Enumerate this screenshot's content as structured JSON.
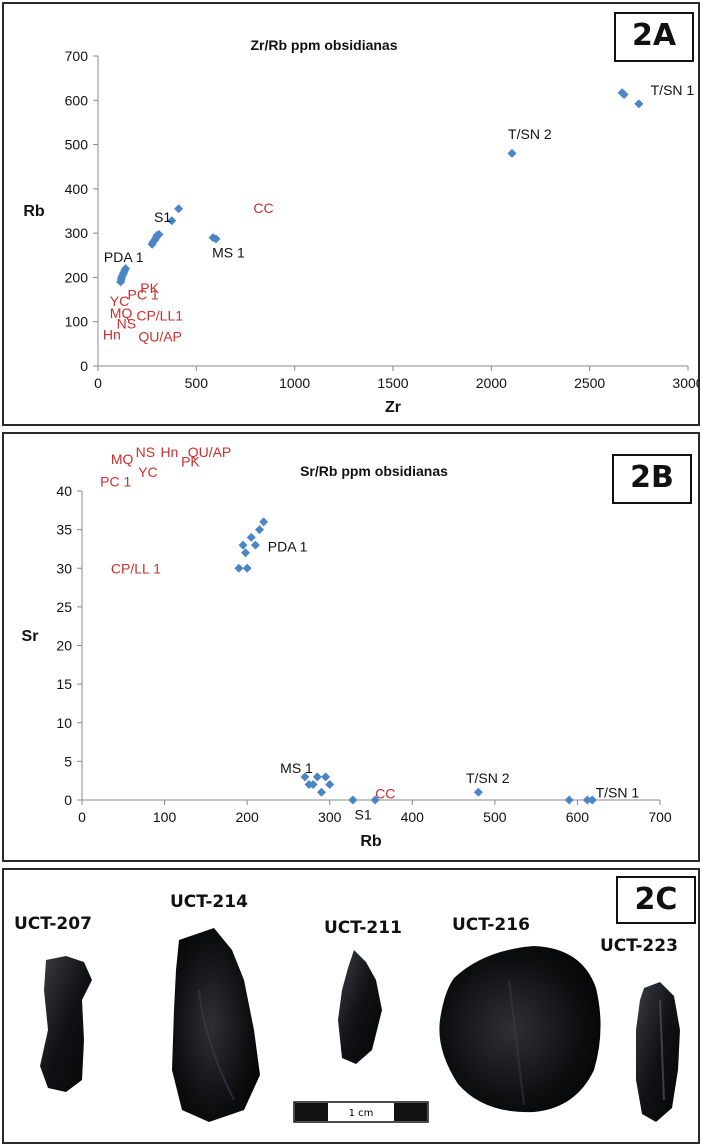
{
  "chart_data": [
    {
      "panel": "2A",
      "type": "scatter",
      "title": "Zr/Rb ppm obsidianas",
      "xlabel": "Zr",
      "ylabel": "Rb",
      "xlim": [
        0,
        3000
      ],
      "ylim": [
        0,
        700
      ],
      "xticks": [
        0,
        500,
        1000,
        1500,
        2000,
        2500,
        3000
      ],
      "yticks": [
        0,
        100,
        200,
        300,
        400,
        500,
        600,
        700
      ],
      "grid": false,
      "marker_color": "#4A86C5",
      "points": [
        [
          115,
          190
        ],
        [
          118,
          195
        ],
        [
          120,
          200
        ],
        [
          125,
          205
        ],
        [
          130,
          210
        ],
        [
          135,
          215
        ],
        [
          140,
          220
        ],
        [
          275,
          275
        ],
        [
          280,
          280
        ],
        [
          290,
          285
        ],
        [
          295,
          290
        ],
        [
          300,
          295
        ],
        [
          310,
          297
        ],
        [
          375,
          328
        ],
        [
          410,
          355
        ],
        [
          585,
          290
        ],
        [
          600,
          287
        ],
        [
          2105,
          480
        ],
        [
          2665,
          617
        ],
        [
          2675,
          613
        ],
        [
          2750,
          592
        ]
      ],
      "labels": [
        {
          "text": "T/SN 1",
          "x": 2810,
          "y": 612,
          "color": "#111111"
        },
        {
          "text": "T/SN 2",
          "x": 2085,
          "y": 513,
          "color": "#111111"
        },
        {
          "text": "S1",
          "x": 285,
          "y": 325,
          "color": "#111111"
        },
        {
          "text": "MS 1",
          "x": 580,
          "y": 245,
          "color": "#111111"
        },
        {
          "text": "PDA 1",
          "x": 30,
          "y": 235,
          "color": "#111111"
        },
        {
          "text": "CC",
          "x": 790,
          "y": 345,
          "color": "#C8312E"
        },
        {
          "text": "PK",
          "x": 215,
          "y": 165,
          "color": "#C8312E"
        },
        {
          "text": "YC",
          "x": 60,
          "y": 135,
          "color": "#C8312E"
        },
        {
          "text": "PC 1",
          "x": 150,
          "y": 150,
          "color": "#C8312E"
        },
        {
          "text": "MQ",
          "x": 60,
          "y": 108,
          "color": "#C8312E"
        },
        {
          "text": "CP/LL1",
          "x": 195,
          "y": 103,
          "color": "#C8312E"
        },
        {
          "text": "NS",
          "x": 95,
          "y": 85,
          "color": "#C8312E"
        },
        {
          "text": "Hn",
          "x": 25,
          "y": 60,
          "color": "#C8312E"
        },
        {
          "text": "QU/AP",
          "x": 205,
          "y": 55,
          "color": "#C8312E"
        }
      ]
    },
    {
      "panel": "2B",
      "type": "scatter",
      "title": "Sr/Rb ppm obsidianas",
      "xlabel": "Rb",
      "ylabel": "Sr",
      "xlim": [
        0,
        700
      ],
      "ylim": [
        0,
        40
      ],
      "xticks": [
        0,
        100,
        200,
        300,
        400,
        500,
        600,
        700
      ],
      "yticks": [
        0,
        5,
        10,
        15,
        20,
        25,
        30,
        35,
        40
      ],
      "grid": false,
      "marker_color": "#4A86C5",
      "points": [
        [
          190,
          30
        ],
        [
          200,
          30
        ],
        [
          195,
          33
        ],
        [
          198,
          32
        ],
        [
          205,
          34
        ],
        [
          210,
          33
        ],
        [
          215,
          35
        ],
        [
          220,
          36
        ],
        [
          270,
          3
        ],
        [
          275,
          2
        ],
        [
          280,
          2
        ],
        [
          285,
          3
        ],
        [
          290,
          1
        ],
        [
          295,
          3
        ],
        [
          300,
          2
        ],
        [
          328,
          0
        ],
        [
          355,
          0
        ],
        [
          480,
          1
        ],
        [
          590,
          0
        ],
        [
          612,
          0
        ],
        [
          618,
          0
        ]
      ],
      "labels": [
        {
          "text": "PDA 1",
          "x": 225,
          "y": 32.2,
          "color": "#111111"
        },
        {
          "text": "MS 1",
          "x": 240,
          "y": 3.5,
          "color": "#111111"
        },
        {
          "text": "S1",
          "x": 330,
          "y": -2.5,
          "color": "#111111"
        },
        {
          "text": "T/SN 2",
          "x": 465,
          "y": 2.2,
          "color": "#111111"
        },
        {
          "text": "T/SN 1",
          "x": 622,
          "y": 0.3,
          "color": "#111111"
        },
        {
          "text": "CC",
          "x": 355,
          "y": 0.2,
          "color": "#C8312E"
        },
        {
          "text": "CP/LL 1",
          "x": 35,
          "y": 29.3,
          "color": "#C8312E"
        },
        {
          "text": "MQ",
          "x": 35,
          "y": 43.5,
          "color": "#C8312E"
        },
        {
          "text": "NS",
          "x": 65,
          "y": 44.4,
          "color": "#C8312E"
        },
        {
          "text": "Hn",
          "x": 95,
          "y": 44.4,
          "color": "#C8312E"
        },
        {
          "text": "QU/AP",
          "x": 128,
          "y": 44.4,
          "color": "#C8312E"
        },
        {
          "text": "YC",
          "x": 68,
          "y": 41.8,
          "color": "#C8312E"
        },
        {
          "text": "PK",
          "x": 120,
          "y": 43.2,
          "color": "#C8312E"
        },
        {
          "text": "PC 1",
          "x": 22,
          "y": 40.6,
          "color": "#C8312E"
        }
      ]
    }
  ],
  "badges": {
    "a": "2A",
    "b": "2B",
    "c": "2C"
  },
  "specimens": [
    {
      "label": "UCT-207"
    },
    {
      "label": "UCT-214"
    },
    {
      "label": "UCT-211"
    },
    {
      "label": "UCT-216"
    },
    {
      "label": "UCT-223"
    }
  ],
  "scale_bar": {
    "label": "1 cm"
  }
}
